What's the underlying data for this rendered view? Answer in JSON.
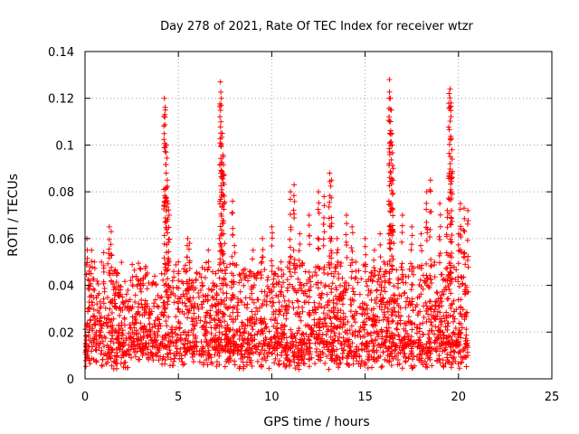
{
  "chart_data": {
    "type": "scatter",
    "title": "Day 278 of 2021, Rate Of TEC Index for receiver wtzr",
    "xlabel": "GPS time / hours",
    "ylabel": "ROTI / TECUs",
    "xlim": [
      0,
      25
    ],
    "ylim": [
      0,
      0.14
    ],
    "x_ticks": [
      "0",
      "5",
      "10",
      "15",
      "20",
      "25"
    ],
    "y_ticks": [
      "0",
      "0.02",
      "0.04",
      "0.06",
      "0.08",
      "0.1",
      "0.12",
      "0.14"
    ],
    "grid": true,
    "marker": "+",
    "color": "#ff0000",
    "data_extent_x": [
      0,
      20.5
    ],
    "series": [
      {
        "x": [
          0.05,
          0.1,
          0.2,
          0.3,
          0.35,
          0.5,
          0.6,
          0.7,
          1.0,
          1.3,
          1.4,
          1.5,
          2.0,
          2.5,
          3.0,
          3.5,
          4.1,
          4.25,
          4.3,
          4.35,
          4.4,
          4.45,
          4.5,
          5.0,
          5.5,
          5.6,
          6.0,
          6.3,
          6.6,
          7.0,
          7.2,
          7.25,
          7.3,
          7.35,
          7.4,
          7.45,
          7.9,
          8.0,
          8.5,
          9.0,
          9.5,
          10.0,
          10.5,
          11.0,
          11.2,
          11.5,
          12.0,
          12.5,
          12.8,
          13.1,
          13.2,
          13.5,
          14.0,
          14.3,
          14.5,
          15.0,
          15.5,
          15.8,
          16.0,
          16.3,
          16.35,
          16.4,
          16.45,
          16.5,
          17.0,
          17.5,
          18.0,
          18.3,
          18.5,
          19.0,
          19.4,
          19.5,
          19.55,
          19.6,
          19.65,
          20.0,
          20.1,
          20.3,
          20.5
        ],
        "y": [
          0.012,
          0.06,
          0.04,
          0.025,
          0.055,
          0.05,
          0.02,
          0.015,
          0.054,
          0.065,
          0.063,
          0.045,
          0.035,
          0.03,
          0.04,
          0.028,
          0.045,
          0.12,
          0.115,
          0.1,
          0.085,
          0.075,
          0.07,
          0.05,
          0.06,
          0.058,
          0.045,
          0.04,
          0.055,
          0.045,
          0.06,
          0.127,
          0.12,
          0.105,
          0.095,
          0.087,
          0.076,
          0.057,
          0.045,
          0.055,
          0.06,
          0.065,
          0.05,
          0.08,
          0.083,
          0.062,
          0.07,
          0.08,
          0.078,
          0.088,
          0.085,
          0.06,
          0.07,
          0.065,
          0.05,
          0.06,
          0.055,
          0.062,
          0.05,
          0.128,
          0.12,
          0.115,
          0.1,
          0.09,
          0.07,
          0.065,
          0.062,
          0.08,
          0.085,
          0.075,
          0.072,
          0.122,
          0.124,
          0.118,
          0.098,
          0.062,
          0.075,
          0.073,
          0.072
        ]
      }
    ]
  }
}
